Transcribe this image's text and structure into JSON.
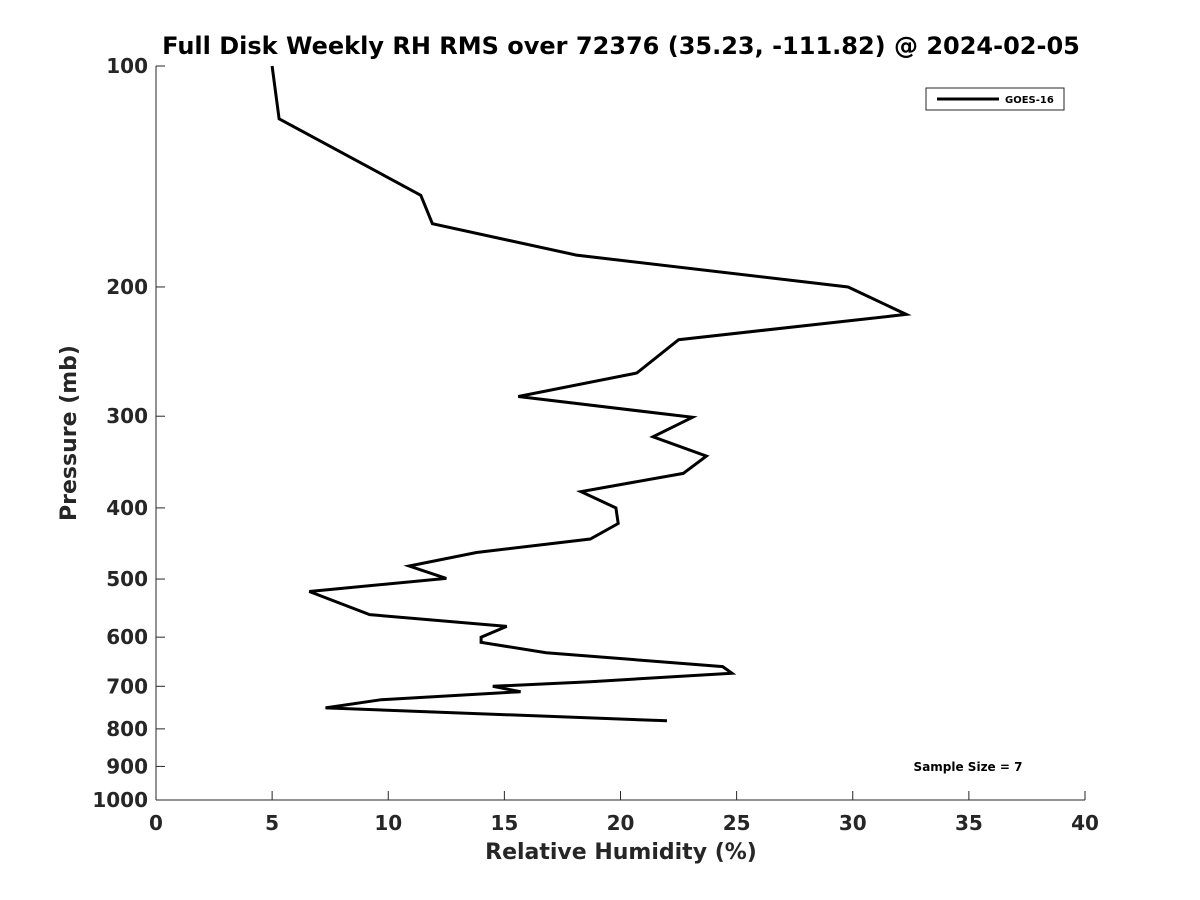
{
  "chart_data": {
    "type": "line",
    "title": "Full Disk Weekly RH RMS over 72376 (35.23, -111.82) @ 2024-02-05",
    "xlabel": "Relative Humidity (%)",
    "ylabel": "Pressure (mb)",
    "xlim": [
      0,
      40
    ],
    "ylim": [
      100,
      1000
    ],
    "y_scale": "log",
    "y_reversed": true,
    "x_ticks": [
      0,
      5,
      10,
      15,
      20,
      25,
      30,
      35,
      40
    ],
    "y_ticks": [
      100,
      200,
      300,
      400,
      500,
      600,
      700,
      800,
      900,
      1000
    ],
    "grid": false,
    "legend_position": "top-right",
    "annotation": "Sample Size = 7",
    "series": [
      {
        "name": "GOES-16",
        "color": "#000000",
        "points": [
          {
            "x": 5.0,
            "p": 100
          },
          {
            "x": 5.3,
            "p": 118
          },
          {
            "x": 11.4,
            "p": 150
          },
          {
            "x": 11.9,
            "p": 164
          },
          {
            "x": 18.1,
            "p": 181
          },
          {
            "x": 29.8,
            "p": 200
          },
          {
            "x": 32.3,
            "p": 218
          },
          {
            "x": 22.5,
            "p": 236
          },
          {
            "x": 20.7,
            "p": 262
          },
          {
            "x": 15.6,
            "p": 282
          },
          {
            "x": 23.1,
            "p": 301
          },
          {
            "x": 21.4,
            "p": 320
          },
          {
            "x": 23.7,
            "p": 340
          },
          {
            "x": 22.7,
            "p": 359
          },
          {
            "x": 18.3,
            "p": 380
          },
          {
            "x": 19.8,
            "p": 400
          },
          {
            "x": 19.9,
            "p": 420
          },
          {
            "x": 18.7,
            "p": 441
          },
          {
            "x": 13.8,
            "p": 460
          },
          {
            "x": 10.9,
            "p": 480
          },
          {
            "x": 12.5,
            "p": 499
          },
          {
            "x": 6.6,
            "p": 520
          },
          {
            "x": 9.2,
            "p": 559
          },
          {
            "x": 15.1,
            "p": 580
          },
          {
            "x": 14.0,
            "p": 600
          },
          {
            "x": 14.0,
            "p": 610
          },
          {
            "x": 16.8,
            "p": 630
          },
          {
            "x": 24.4,
            "p": 658
          },
          {
            "x": 24.8,
            "p": 672
          },
          {
            "x": 18.7,
            "p": 690
          },
          {
            "x": 14.5,
            "p": 700
          },
          {
            "x": 15.7,
            "p": 712
          },
          {
            "x": 9.7,
            "p": 730
          },
          {
            "x": 7.3,
            "p": 749
          },
          {
            "x": 22.0,
            "p": 780
          }
        ]
      }
    ]
  }
}
